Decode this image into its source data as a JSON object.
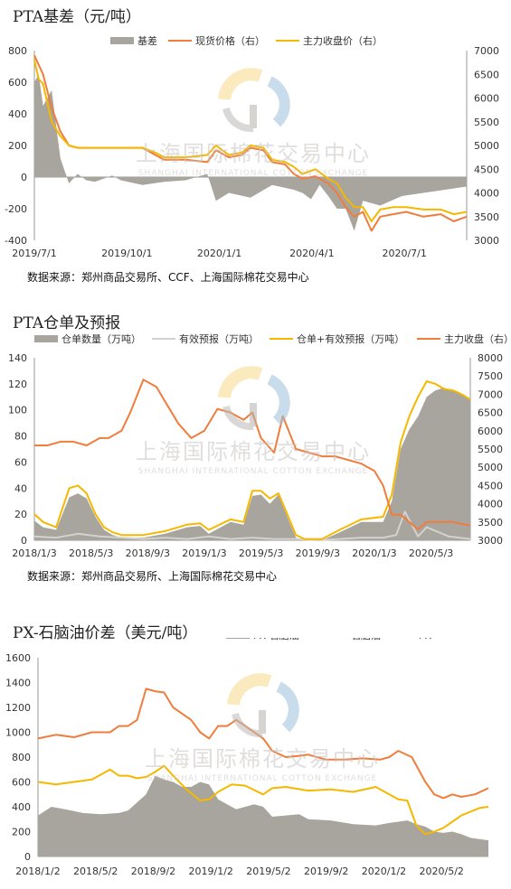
{
  "colors": {
    "gray": "#a8a49e",
    "orange": "#f07d3c",
    "yellow": "#f5b800",
    "lightgray": "#d4d2cf",
    "watermark": "#c7c4c0"
  },
  "watermark": {
    "cn": "上海国际棉花交易中心",
    "en": "SHANGHAI INTERNATIONAL COTTON EXCHANGE"
  },
  "chart_data": [
    {
      "type": "area+line",
      "title": "PTA基差（元/吨）",
      "source": "数据来源：郑州商品交易所、CCF、上海国际棉花交易中心",
      "x_ticks": [
        "2019/7/1",
        "2019/10/1",
        "2020/1/1",
        "2020/4/1",
        "2020/7/1"
      ],
      "y_left_ticks": [
        "800",
        "600",
        "400",
        "200",
        "0",
        "-200",
        "-400"
      ],
      "y_right_ticks": [
        "7000",
        "6500",
        "6000",
        "5500",
        "5000",
        "4500",
        "4000",
        "3500",
        "3000"
      ],
      "ylim_left": [
        -400,
        800
      ],
      "ylim_right": [
        3000,
        7000
      ],
      "legend": [
        "基差",
        "现货价格（右）",
        "主力收盘价（右）"
      ],
      "series": [
        {
          "name": "基差",
          "kind": "area",
          "axis": "left",
          "x": [
            0,
            0.01,
            0.02,
            0.04,
            0.06,
            0.08,
            0.1,
            0.12,
            0.14,
            0.16,
            0.18,
            0.2,
            0.25,
            0.3,
            0.35,
            0.4,
            0.42,
            0.45,
            0.5,
            0.55,
            0.6,
            0.62,
            0.64,
            0.66,
            0.68,
            0.7,
            0.72,
            0.74,
            0.76,
            0.8,
            0.85,
            0.9,
            0.95,
            1.0
          ],
          "values": [
            600,
            650,
            450,
            550,
            120,
            -40,
            20,
            -20,
            -30,
            -10,
            10,
            -20,
            -50,
            -30,
            -20,
            20,
            -150,
            -100,
            -130,
            -50,
            -80,
            -100,
            -140,
            -50,
            -120,
            -200,
            -200,
            -340,
            -150,
            -180,
            -120,
            -100,
            -80,
            -60
          ]
        },
        {
          "name": "现货价格（右）",
          "kind": "line",
          "axis": "right",
          "x": [
            0,
            0.01,
            0.02,
            0.04,
            0.06,
            0.08,
            0.1,
            0.14,
            0.2,
            0.25,
            0.28,
            0.3,
            0.35,
            0.4,
            0.42,
            0.45,
            0.48,
            0.5,
            0.53,
            0.55,
            0.58,
            0.6,
            0.62,
            0.65,
            0.68,
            0.7,
            0.72,
            0.74,
            0.76,
            0.78,
            0.8,
            0.83,
            0.86,
            0.9,
            0.94,
            0.97,
            1.0
          ],
          "values": [
            6900,
            6700,
            6500,
            5800,
            5300,
            5000,
            4950,
            4950,
            4950,
            4950,
            4800,
            4700,
            4700,
            4650,
            4900,
            4750,
            4800,
            4950,
            4900,
            4650,
            4600,
            4400,
            4300,
            4350,
            4200,
            4000,
            3700,
            3500,
            3600,
            3200,
            3500,
            3550,
            3600,
            3500,
            3550,
            3400,
            3500
          ]
        },
        {
          "name": "主力收盘价（右）",
          "kind": "line",
          "axis": "right",
          "x": [
            0,
            0.01,
            0.02,
            0.04,
            0.06,
            0.08,
            0.1,
            0.14,
            0.2,
            0.25,
            0.28,
            0.3,
            0.35,
            0.4,
            0.42,
            0.45,
            0.48,
            0.5,
            0.53,
            0.55,
            0.58,
            0.6,
            0.62,
            0.65,
            0.68,
            0.7,
            0.72,
            0.74,
            0.76,
            0.78,
            0.8,
            0.83,
            0.86,
            0.9,
            0.94,
            0.97,
            1.0
          ],
          "values": [
            6800,
            6400,
            6300,
            5500,
            5200,
            5000,
            4950,
            4950,
            4950,
            4950,
            4850,
            4750,
            4750,
            4800,
            5000,
            4800,
            4850,
            5000,
            4950,
            4700,
            4650,
            4550,
            4400,
            4500,
            4300,
            4200,
            3900,
            3700,
            3700,
            3400,
            3650,
            3700,
            3700,
            3650,
            3650,
            3550,
            3600
          ]
        }
      ]
    },
    {
      "type": "area+line",
      "title": "PTA仓单及预报",
      "source": "数据来源：郑州商品交易所、上海国际棉花交易中心",
      "x_ticks": [
        "2018/1/3",
        "2018/5/3",
        "2018/9/3",
        "2019/1/3",
        "2019/5/3",
        "2019/9/3",
        "2020/1/3",
        "2020/5/3"
      ],
      "y_left_ticks": [
        "140",
        "120",
        "100",
        "80",
        "60",
        "40",
        "20",
        "0"
      ],
      "y_right_ticks": [
        "8000",
        "7500",
        "7000",
        "6500",
        "6000",
        "5500",
        "5000",
        "4500",
        "4000",
        "3500",
        "3000"
      ],
      "ylim_left": [
        0,
        140
      ],
      "ylim_right": [
        3000,
        8000
      ],
      "legend": [
        "仓单数量（万吨）",
        "有效预报（万吨）",
        "仓单+有效预报（万吨）",
        "主力收盘（右）"
      ],
      "series": [
        {
          "name": "仓单数量（万吨）",
          "kind": "area",
          "axis": "left",
          "x": [
            0,
            0.02,
            0.05,
            0.08,
            0.1,
            0.12,
            0.14,
            0.16,
            0.18,
            0.2,
            0.25,
            0.3,
            0.35,
            0.38,
            0.4,
            0.45,
            0.48,
            0.5,
            0.52,
            0.54,
            0.56,
            0.58,
            0.6,
            0.62,
            0.64,
            0.66,
            0.7,
            0.75,
            0.8,
            0.82,
            0.84,
            0.86,
            0.88,
            0.9,
            0.92,
            0.94,
            0.96,
            0.98,
            1.0
          ],
          "values": [
            15,
            10,
            8,
            33,
            36,
            32,
            18,
            8,
            4,
            2,
            2,
            5,
            10,
            11,
            5,
            14,
            12,
            34,
            35,
            28,
            35,
            18,
            2,
            0,
            0,
            0,
            6,
            14,
            14,
            30,
            70,
            85,
            95,
            110,
            115,
            117,
            115,
            112,
            108
          ]
        },
        {
          "name": "有效预报（万吨）",
          "kind": "line",
          "axis": "left",
          "x": [
            0,
            0.05,
            0.1,
            0.15,
            0.2,
            0.25,
            0.3,
            0.35,
            0.4,
            0.45,
            0.5,
            0.55,
            0.6,
            0.65,
            0.7,
            0.75,
            0.8,
            0.83,
            0.85,
            0.88,
            0.9,
            0.95,
            1.0
          ],
          "values": [
            3,
            2,
            5,
            3,
            2,
            1,
            2,
            1,
            3,
            1,
            2,
            1,
            1,
            0,
            1,
            2,
            2,
            4,
            22,
            3,
            10,
            3,
            1
          ]
        },
        {
          "name": "仓单+有效预报（万吨）",
          "kind": "line",
          "axis": "left",
          "x": [
            0,
            0.02,
            0.05,
            0.08,
            0.1,
            0.12,
            0.14,
            0.16,
            0.18,
            0.2,
            0.25,
            0.3,
            0.35,
            0.38,
            0.4,
            0.45,
            0.48,
            0.5,
            0.52,
            0.54,
            0.56,
            0.58,
            0.6,
            0.62,
            0.64,
            0.66,
            0.7,
            0.75,
            0.8,
            0.82,
            0.84,
            0.86,
            0.88,
            0.9,
            0.92,
            0.94,
            0.96,
            0.98,
            1.0
          ],
          "values": [
            20,
            14,
            10,
            40,
            42,
            36,
            20,
            10,
            6,
            4,
            4,
            7,
            12,
            13,
            8,
            16,
            14,
            38,
            38,
            32,
            36,
            20,
            4,
            1,
            1,
            1,
            8,
            16,
            18,
            35,
            75,
            95,
            110,
            122,
            120,
            116,
            115,
            112,
            108
          ]
        },
        {
          "name": "主力收盘（右）",
          "kind": "line",
          "axis": "right",
          "x": [
            0,
            0.03,
            0.06,
            0.09,
            0.12,
            0.15,
            0.17,
            0.2,
            0.22,
            0.25,
            0.28,
            0.3,
            0.33,
            0.36,
            0.39,
            0.42,
            0.45,
            0.48,
            0.5,
            0.52,
            0.55,
            0.57,
            0.6,
            0.63,
            0.66,
            0.69,
            0.72,
            0.75,
            0.78,
            0.8,
            0.82,
            0.84,
            0.86,
            0.88,
            0.9,
            0.93,
            0.96,
            1.0
          ],
          "values": [
            5600,
            5600,
            5700,
            5700,
            5600,
            5800,
            5800,
            6000,
            6500,
            7400,
            7200,
            6800,
            6200,
            5800,
            6000,
            6600,
            6500,
            6300,
            6500,
            5800,
            5400,
            6400,
            5500,
            5400,
            5300,
            5300,
            5200,
            5100,
            4900,
            4500,
            3700,
            3700,
            3500,
            3300,
            3500,
            3500,
            3500,
            3400
          ]
        }
      ]
    },
    {
      "type": "area+line",
      "title": "PX-石脑油价差（美元/吨）",
      "x_ticks": [
        "2018/1/2",
        "2018/5/2",
        "2018/9/2",
        "2019/1/2",
        "2019/5/2",
        "2019/9/2",
        "2020/1/2",
        "2020/5/2"
      ],
      "y_left_ticks": [
        "1600",
        "1400",
        "1200",
        "1000",
        "800",
        "600",
        "400",
        "200",
        "0"
      ],
      "ylim_left": [
        0,
        1600
      ],
      "legend": [
        "PX-石脑油",
        "石脑油",
        "PX"
      ],
      "series": [
        {
          "name": "PX-石脑油",
          "kind": "area",
          "axis": "left",
          "x": [
            0,
            0.03,
            0.06,
            0.1,
            0.14,
            0.18,
            0.2,
            0.24,
            0.26,
            0.28,
            0.3,
            0.32,
            0.34,
            0.36,
            0.38,
            0.4,
            0.44,
            0.48,
            0.5,
            0.52,
            0.55,
            0.58,
            0.6,
            0.65,
            0.7,
            0.75,
            0.78,
            0.8,
            0.82,
            0.84,
            0.86,
            0.88,
            0.9,
            0.92,
            0.94,
            0.96,
            0.98,
            1.0
          ],
          "values": [
            330,
            400,
            380,
            350,
            340,
            350,
            370,
            500,
            650,
            620,
            600,
            560,
            560,
            600,
            580,
            460,
            380,
            420,
            400,
            320,
            330,
            340,
            300,
            290,
            260,
            250,
            270,
            280,
            290,
            260,
            240,
            200,
            190,
            200,
            180,
            150,
            140,
            130
          ]
        },
        {
          "name": "石脑油",
          "kind": "line",
          "axis": "left",
          "x": [
            0,
            0.04,
            0.08,
            0.12,
            0.16,
            0.18,
            0.2,
            0.22,
            0.24,
            0.26,
            0.28,
            0.3,
            0.33,
            0.36,
            0.38,
            0.4,
            0.43,
            0.46,
            0.5,
            0.52,
            0.55,
            0.6,
            0.65,
            0.7,
            0.75,
            0.78,
            0.8,
            0.82,
            0.84,
            0.86,
            0.88,
            0.9,
            0.92,
            0.94,
            0.96,
            0.98,
            1.0
          ],
          "values": [
            600,
            580,
            600,
            620,
            700,
            650,
            650,
            630,
            640,
            680,
            730,
            650,
            540,
            450,
            460,
            520,
            580,
            570,
            500,
            550,
            560,
            530,
            540,
            520,
            560,
            500,
            460,
            450,
            250,
            180,
            200,
            230,
            280,
            330,
            360,
            390,
            400
          ]
        },
        {
          "name": "PX",
          "kind": "line",
          "axis": "left",
          "x": [
            0,
            0.04,
            0.08,
            0.12,
            0.16,
            0.18,
            0.2,
            0.22,
            0.24,
            0.26,
            0.28,
            0.3,
            0.32,
            0.34,
            0.36,
            0.38,
            0.4,
            0.42,
            0.44,
            0.46,
            0.5,
            0.52,
            0.55,
            0.58,
            0.6,
            0.64,
            0.68,
            0.72,
            0.76,
            0.78,
            0.8,
            0.83,
            0.86,
            0.88,
            0.9,
            0.92,
            0.94,
            0.97,
            1.0
          ],
          "values": [
            950,
            980,
            960,
            1000,
            1000,
            1050,
            1050,
            1100,
            1350,
            1330,
            1320,
            1200,
            1150,
            1100,
            1000,
            950,
            1050,
            1050,
            1100,
            1050,
            950,
            850,
            800,
            810,
            820,
            780,
            780,
            790,
            780,
            800,
            850,
            800,
            600,
            500,
            470,
            500,
            480,
            500,
            550
          ]
        }
      ]
    }
  ]
}
